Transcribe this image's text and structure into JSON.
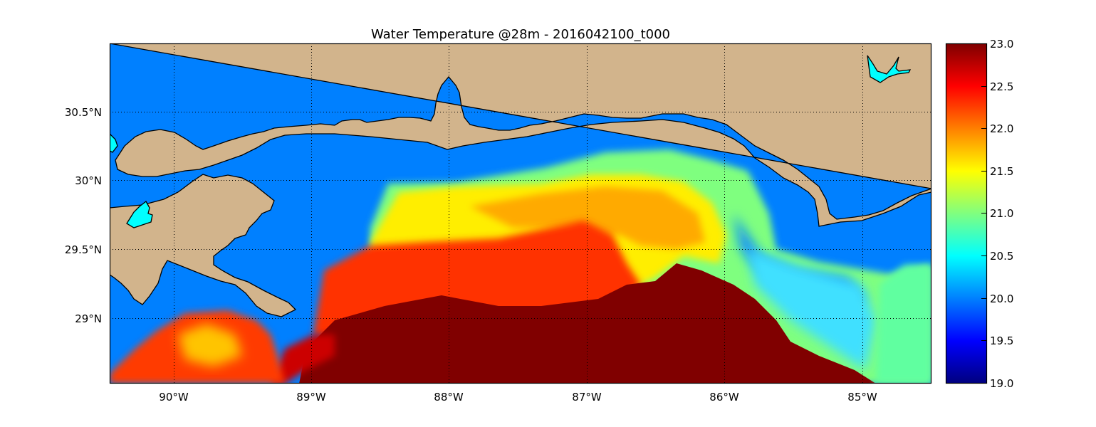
{
  "title": "Water Temperature @28m - 2016042100_t000",
  "x_ticks": [
    "90°W",
    "89°W",
    "88°W",
    "87°W",
    "86°W",
    "85°W"
  ],
  "y_ticks": [
    "30.5°N",
    "30°N",
    "29.5°N",
    "29°N"
  ],
  "colorbar": {
    "ticks": [
      "23.0",
      "22.5",
      "22.0",
      "21.5",
      "21.0",
      "20.5",
      "20.0",
      "19.5",
      "19.0"
    ],
    "min": 19.0,
    "max": 23.0,
    "colormap": "jet"
  },
  "colors": {
    "land": "#d2b48c",
    "model_fill": "#0080ff",
    "lake": "#00ffff",
    "grid": "#000000",
    "warm_core": "#800000"
  },
  "map_extent": {
    "lon": [
      -90.5,
      -84.5
    ],
    "lat": [
      28.55,
      31.0
    ]
  }
}
